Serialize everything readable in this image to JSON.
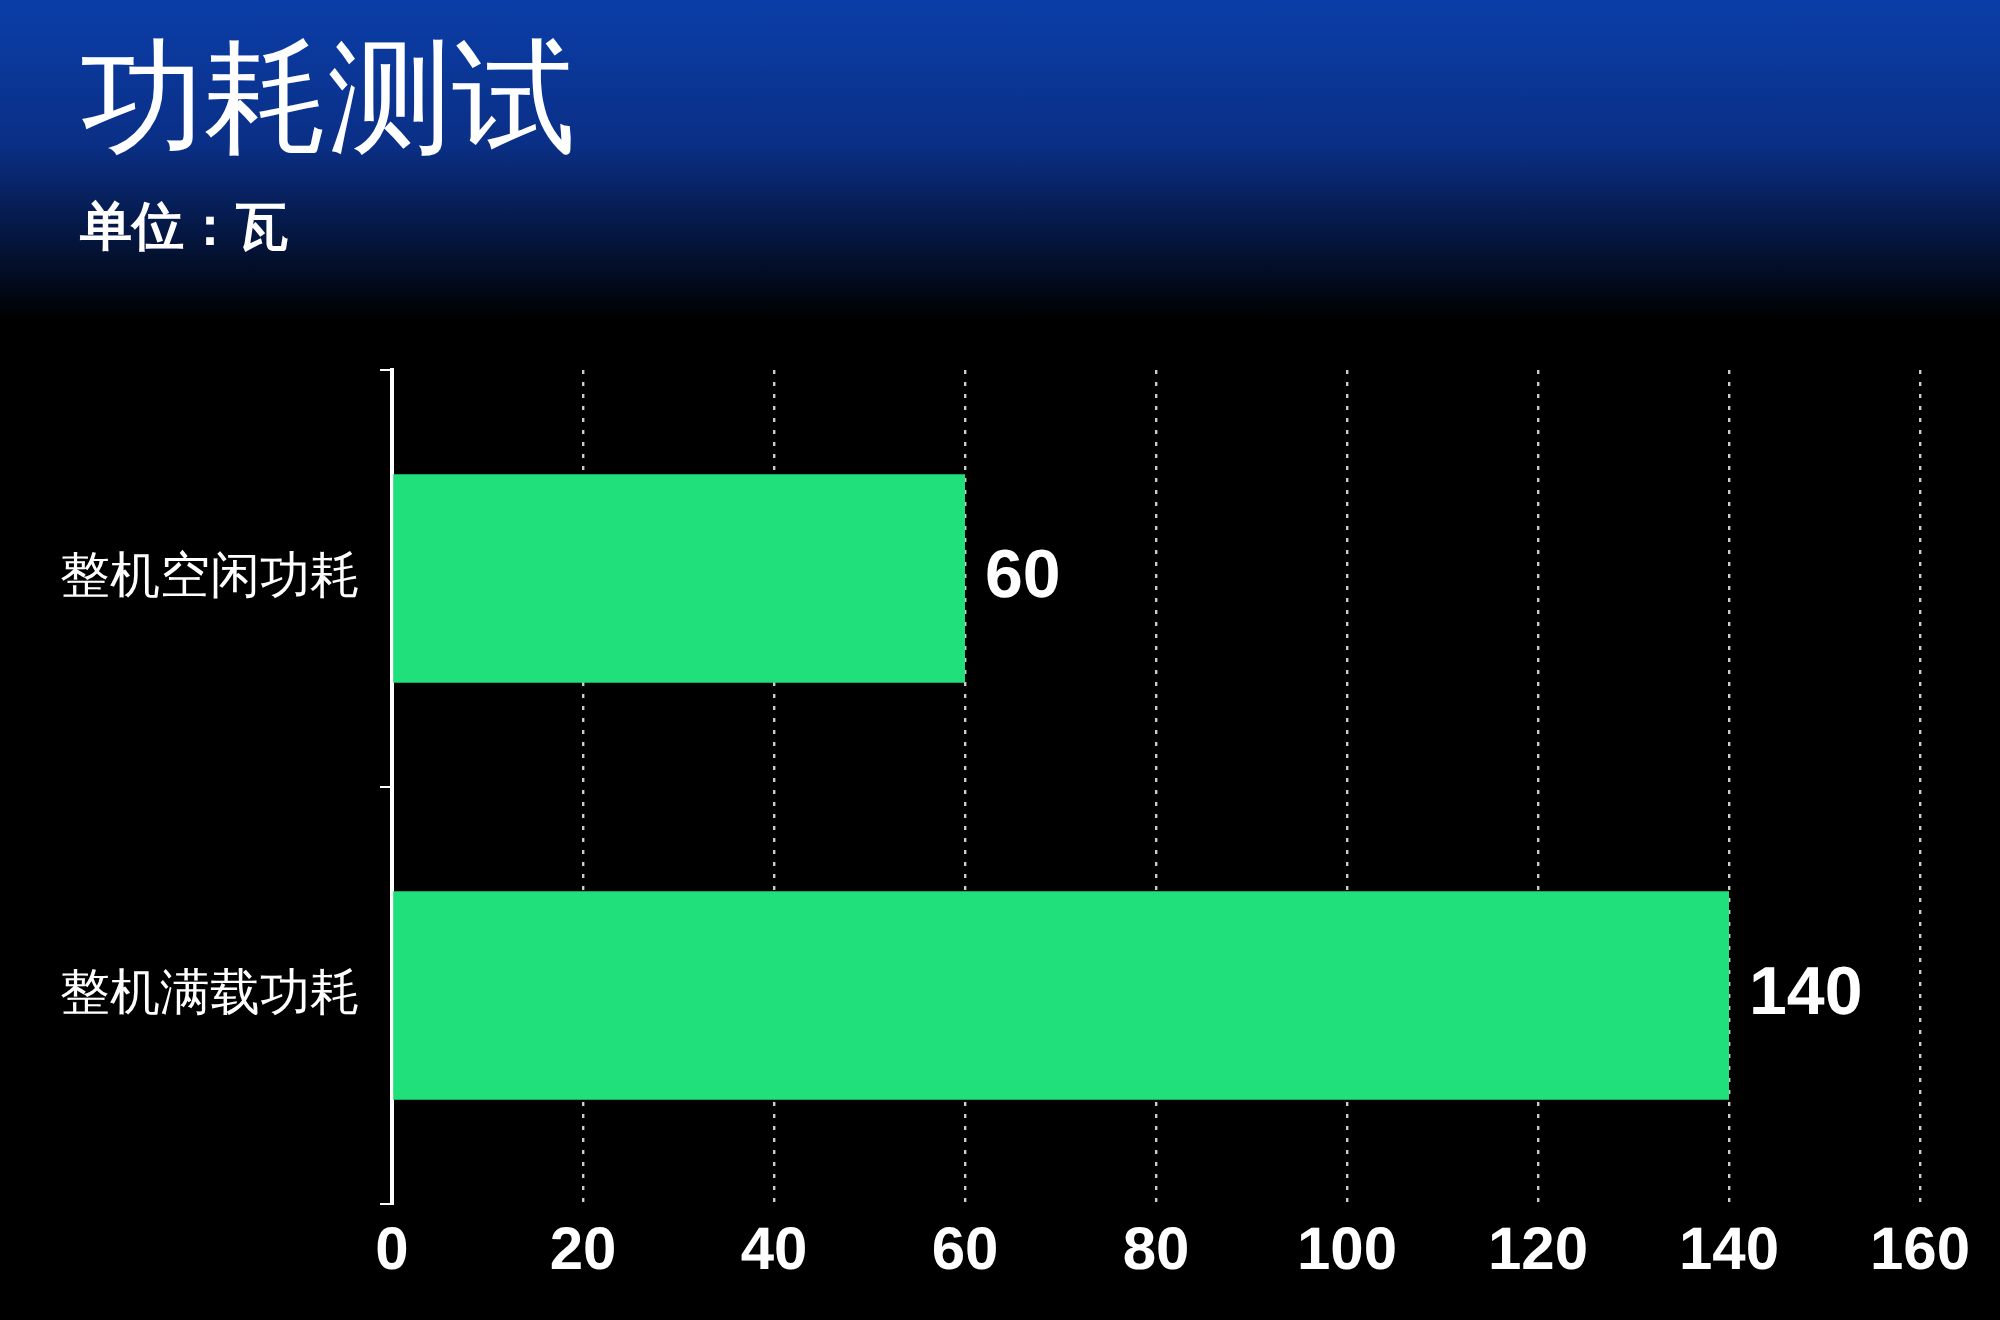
{
  "chart_data": {
    "type": "bar",
    "title": "功耗测试",
    "subtitle": "单位：瓦",
    "orientation": "horizontal",
    "categories": [
      "整机空闲功耗",
      "整机满载功耗"
    ],
    "values": [
      60,
      140
    ],
    "color": "#1fe07a",
    "xlim": [
      0,
      160
    ],
    "xticks": [
      0,
      20,
      40,
      60,
      80,
      100,
      120,
      140,
      160
    ],
    "grid": "x",
    "legend": false,
    "data_labels": true
  }
}
